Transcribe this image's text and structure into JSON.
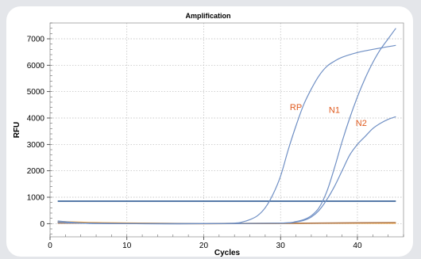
{
  "chart_data": {
    "type": "line",
    "title": "Amplification",
    "xlabel": "Cycles",
    "ylabel": "RFU",
    "xlim": [
      0,
      46
    ],
    "ylim": [
      -500,
      7600
    ],
    "x_ticks": [
      0,
      10,
      20,
      30,
      40
    ],
    "y_ticks": [
      0,
      1000,
      2000,
      3000,
      4000,
      5000,
      6000,
      7000
    ],
    "grid": true,
    "threshold": {
      "value": 850,
      "x_range": [
        1,
        45
      ],
      "color": "#1f4e8c"
    },
    "series": [
      {
        "name": "RP",
        "color": "#6f8fc4",
        "x": [
          1,
          3,
          5,
          10,
          15,
          20,
          24,
          25,
          26,
          27,
          28,
          29,
          30,
          31,
          32,
          33,
          34,
          35,
          36,
          37,
          38,
          40,
          42,
          45
        ],
        "y": [
          100,
          50,
          20,
          0,
          -10,
          0,
          20,
          60,
          150,
          300,
          600,
          1100,
          1800,
          2800,
          3700,
          4500,
          5100,
          5600,
          5950,
          6150,
          6300,
          6480,
          6600,
          6750
        ]
      },
      {
        "name": "N1",
        "color": "#6f8fc4",
        "x": [
          1,
          5,
          10,
          20,
          30,
          32,
          33,
          34,
          35,
          36,
          37,
          38,
          39,
          40,
          41,
          42,
          43,
          44,
          45
        ],
        "y": [
          50,
          10,
          0,
          0,
          20,
          80,
          150,
          300,
          600,
          1200,
          2100,
          3100,
          4000,
          4800,
          5500,
          6100,
          6600,
          7000,
          7400
        ]
      },
      {
        "name": "N2",
        "color": "#6f8fc4",
        "x": [
          1,
          5,
          10,
          20,
          30,
          32,
          33,
          34,
          35,
          36,
          37,
          38,
          39,
          40,
          41,
          42,
          43,
          44,
          45
        ],
        "y": [
          50,
          10,
          0,
          0,
          20,
          60,
          120,
          250,
          500,
          900,
          1400,
          2000,
          2600,
          3000,
          3300,
          3600,
          3800,
          3950,
          4050
        ]
      },
      {
        "color": "#f0a030",
        "x": [
          1,
          5,
          10,
          20,
          30,
          40,
          45
        ],
        "y": [
          80,
          40,
          20,
          0,
          10,
          20,
          20
        ]
      },
      {
        "color": "#b07a50",
        "x": [
          1,
          5,
          10,
          20,
          30,
          40,
          45
        ],
        "y": [
          20,
          20,
          10,
          0,
          10,
          30,
          40
        ]
      }
    ],
    "annotations": [
      {
        "text": "RP",
        "x": 32,
        "y": 4300
      },
      {
        "text": "N1",
        "x": 37,
        "y": 4200
      },
      {
        "text": "N2",
        "x": 40.5,
        "y": 3700
      }
    ]
  }
}
